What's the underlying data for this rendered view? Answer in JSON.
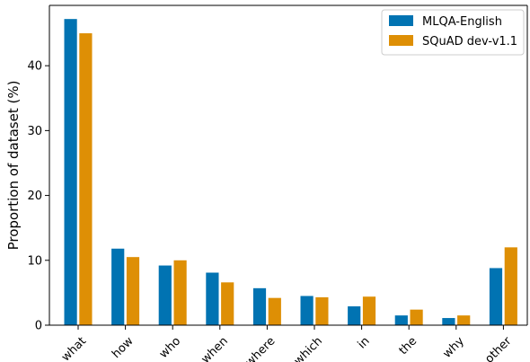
{
  "chart_data": {
    "type": "bar",
    "title": "",
    "xlabel": "",
    "ylabel": "Proportion of dataset (%)",
    "ylim": [
      0,
      49.3
    ],
    "yticks": [
      0,
      10,
      20,
      30,
      40
    ],
    "categories": [
      "what",
      "how",
      "who",
      "when",
      "where",
      "which",
      "in",
      "the",
      "why",
      "other"
    ],
    "series": [
      {
        "name": "MLQA-English",
        "color": "#0173b2",
        "values": [
          47.2,
          11.8,
          9.2,
          8.1,
          5.7,
          4.5,
          2.9,
          1.5,
          1.1,
          8.8
        ]
      },
      {
        "name": "SQuAD dev-v1.1",
        "color": "#de8f05",
        "values": [
          45.0,
          10.5,
          10.0,
          6.6,
          4.2,
          4.3,
          4.4,
          2.4,
          1.5,
          12.0
        ]
      }
    ],
    "grid": false,
    "legend_position": "top-right"
  }
}
